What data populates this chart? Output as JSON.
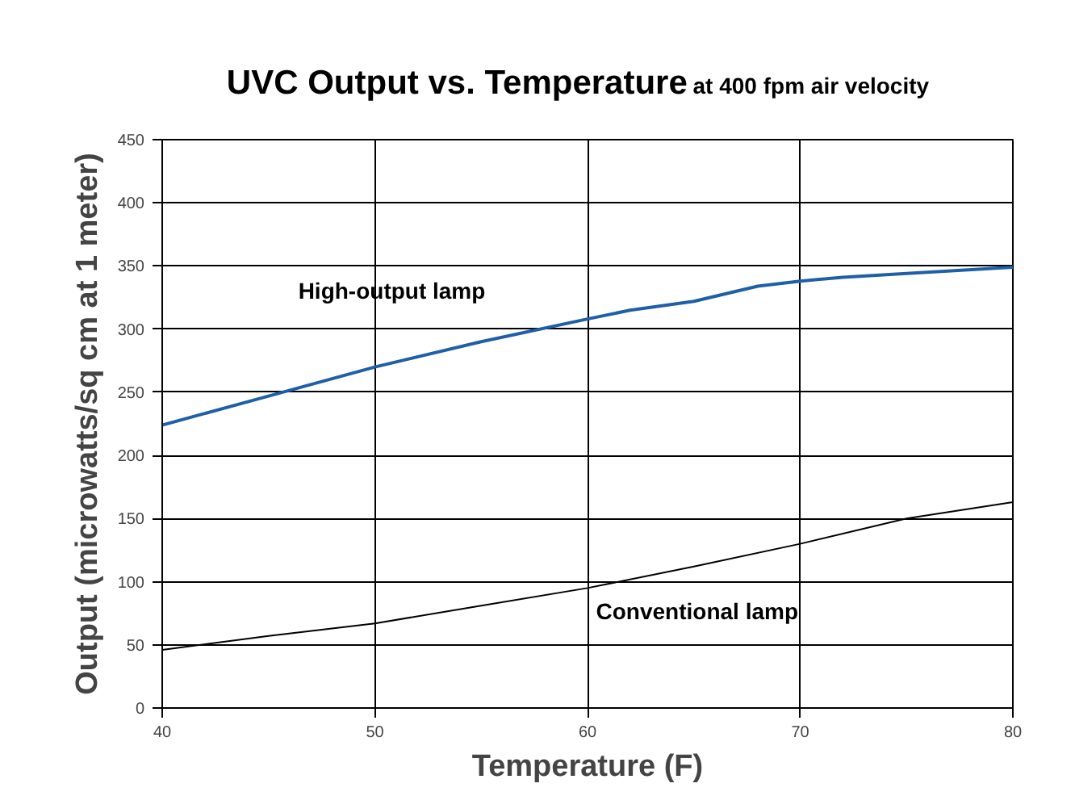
{
  "chart_data": {
    "type": "line",
    "title": "UVC Output vs. Temperature",
    "subtitle": "at 400 fpm air velocity",
    "xlabel": "Temperature (F)",
    "ylabel": "Output (microwatts/sq cm at 1 meter)",
    "xlim": [
      40,
      80
    ],
    "xticks": [
      40,
      50,
      60,
      70,
      80
    ],
    "ylim": [
      0,
      450
    ],
    "yticks": [
      0,
      50,
      100,
      150,
      200,
      250,
      300,
      350,
      400,
      450
    ],
    "grid": true,
    "legend": false,
    "series": [
      {
        "name": "High-output lamp",
        "color": "#1f5fa8",
        "x": [
          40,
          45,
          50,
          55,
          60,
          62,
          65,
          68,
          70,
          72,
          75,
          80
        ],
        "values": [
          224,
          247,
          270,
          290,
          308,
          315,
          322,
          334,
          338,
          341,
          344,
          349
        ]
      },
      {
        "name": "Conventional lamp",
        "color": "#000000",
        "x": [
          40,
          45,
          50,
          55,
          60,
          65,
          70,
          75,
          80
        ],
        "values": [
          46,
          57,
          67,
          81,
          95,
          112,
          130,
          150,
          163
        ]
      }
    ]
  }
}
